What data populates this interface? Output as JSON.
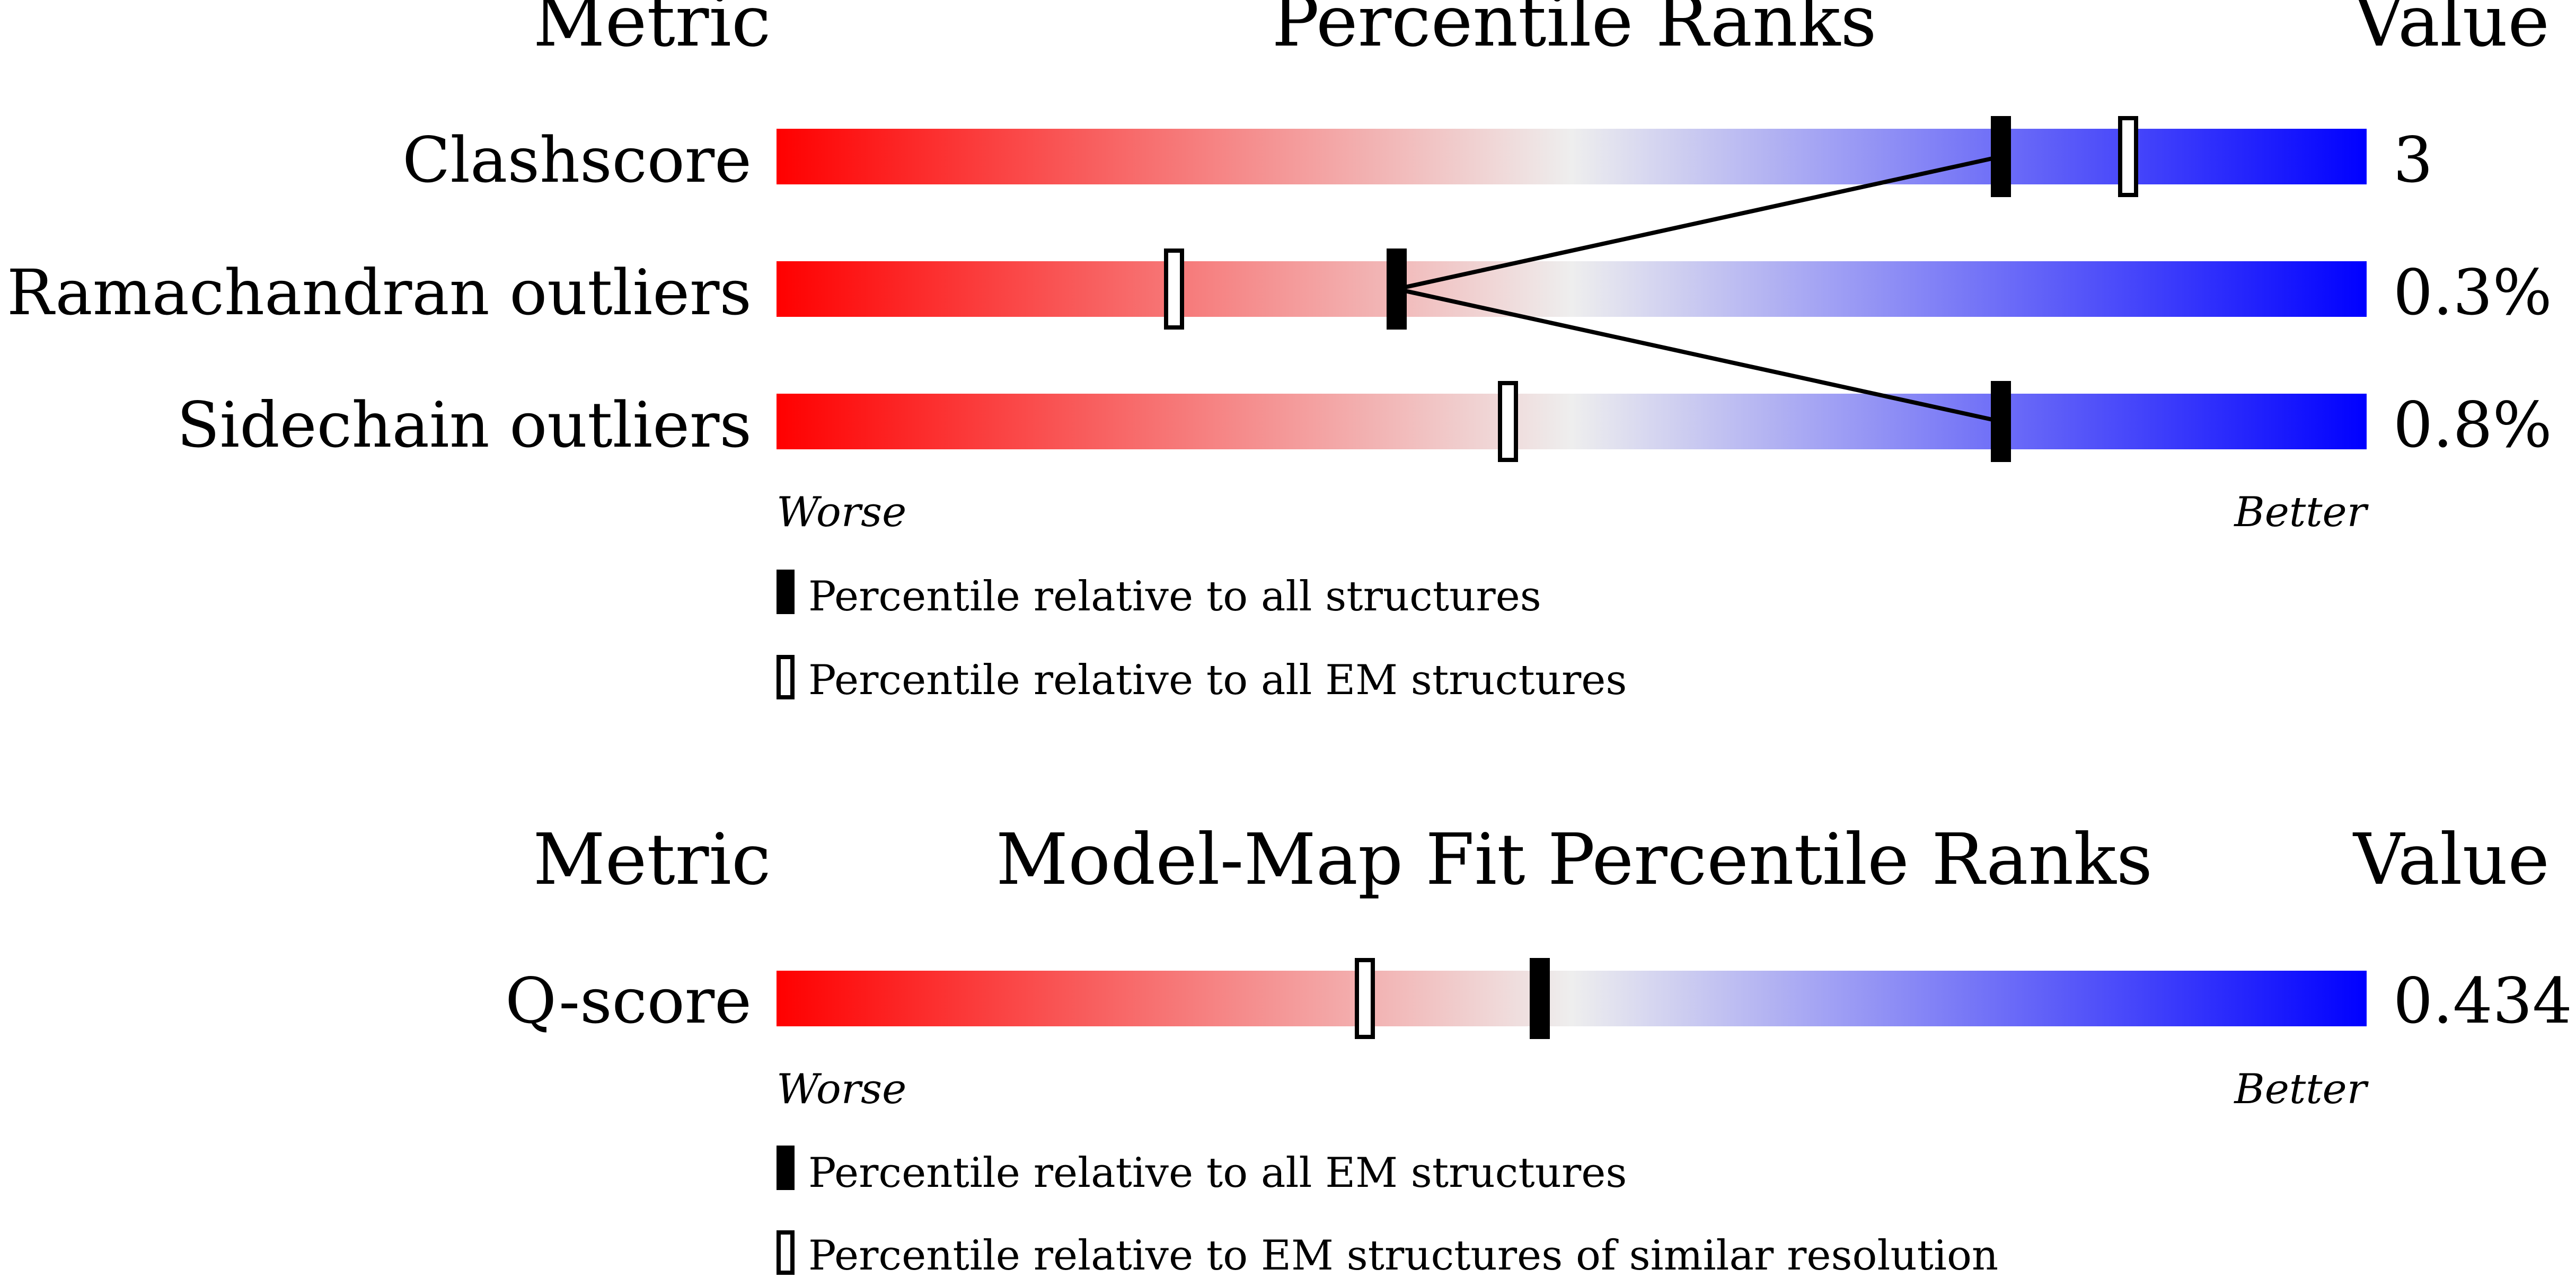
{
  "colors": {
    "worse": "#ff0000",
    "middle": "#eeeeee",
    "better": "#0000ff",
    "marker": "#000000"
  },
  "chart_data": [
    {
      "type": "bar",
      "headers": {
        "metric": "Metric",
        "title": "Percentile Ranks",
        "value": "Value"
      },
      "metrics": [
        {
          "name": "Clashscore",
          "value": "3",
          "percentile_all": 77,
          "percentile_em": 85
        },
        {
          "name": "Ramachandran outliers",
          "value": "0.3%",
          "percentile_all": 39,
          "percentile_em": 25
        },
        {
          "name": "Sidechain outliers",
          "value": "0.8%",
          "percentile_all": 77,
          "percentile_em": 46
        }
      ],
      "axis": {
        "left": "Worse",
        "right": "Better",
        "range": [
          0,
          100
        ]
      },
      "connect_all_markers": true,
      "legend": [
        {
          "marker": "filled",
          "label": "Percentile relative to all structures"
        },
        {
          "marker": "open",
          "label": "Percentile relative to all EM structures"
        }
      ]
    },
    {
      "type": "bar",
      "headers": {
        "metric": "Metric",
        "title": "Model-Map Fit Percentile Ranks",
        "value": "Value"
      },
      "metrics": [
        {
          "name": "Q-score",
          "value": "0.434",
          "percentile_all": 48,
          "percentile_em": 37
        }
      ],
      "axis": {
        "left": "Worse",
        "right": "Better",
        "range": [
          0,
          100
        ]
      },
      "connect_all_markers": false,
      "legend": [
        {
          "marker": "filled",
          "label": "Percentile relative to all EM structures"
        },
        {
          "marker": "open",
          "label": "Percentile relative to EM structures of similar resolution"
        }
      ]
    }
  ]
}
